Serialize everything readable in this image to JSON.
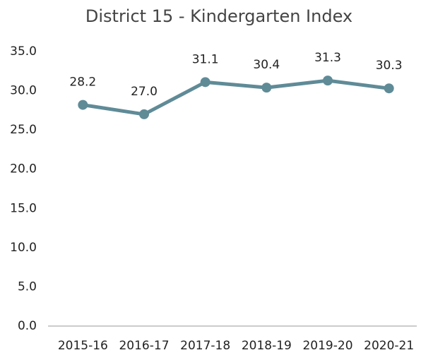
{
  "chart_data": {
    "type": "line",
    "title": "District 15 - Kindergarten Index",
    "categories": [
      "2015-16",
      "2016-17",
      "2017-18",
      "2018-19",
      "2019-20",
      "2020-21"
    ],
    "values": [
      28.2,
      27.0,
      31.1,
      30.4,
      31.3,
      30.3
    ],
    "value_labels": [
      "28.2",
      "27.0",
      "31.1",
      "30.4",
      "31.3",
      "30.3"
    ],
    "color": "#5f8b97",
    "ylim": [
      0,
      35
    ],
    "yticks": [
      {
        "value": 0,
        "label": "0.0"
      },
      {
        "value": 5,
        "label": "5.0"
      },
      {
        "value": 10,
        "label": "10.0"
      },
      {
        "value": 15,
        "label": "15.0"
      },
      {
        "value": 20,
        "label": "20.0"
      },
      {
        "value": 25,
        "label": "25.0"
      },
      {
        "value": 30,
        "label": "30.0"
      },
      {
        "value": 35,
        "label": "35.0"
      }
    ],
    "grid": false
  }
}
